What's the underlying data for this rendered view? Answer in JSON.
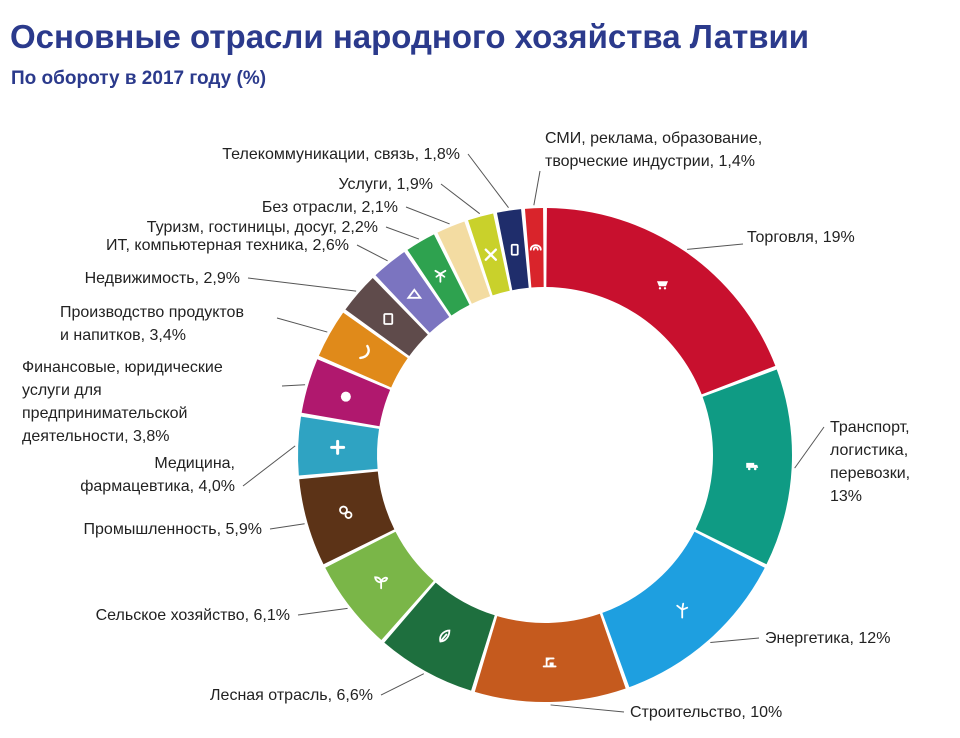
{
  "title": "Основные отрасли народного хозяйства Латвии",
  "subtitle": "По обороту в 2017 году (%)",
  "chart_data": {
    "type": "pie",
    "title": "Основные отрасли народного хозяйства Латвии",
    "subtitle": "По обороту в 2017 году (%)",
    "donut": true,
    "slices": [
      {
        "label_lines": [
          "Торговля, 19%"
        ],
        "category": "Торговля",
        "value": 19,
        "color": "#c8102e",
        "icon": "cart-icon"
      },
      {
        "label_lines": [
          "Транспорт,",
          "логистика,",
          "перевозки,",
          "13%"
        ],
        "category": "Транспорт, логистика, перевозки",
        "value": 13,
        "color": "#0f9b84",
        "icon": "truck-icon"
      },
      {
        "label_lines": [
          "Энергетика, 12%"
        ],
        "category": "Энергетика",
        "value": 12,
        "color": "#1e9fe0",
        "icon": "wind-turbine-icon"
      },
      {
        "label_lines": [
          "Строительство, 10%"
        ],
        "category": "Строительство",
        "value": 10,
        "color": "#c55a1e",
        "icon": "crane-icon"
      },
      {
        "label_lines": [
          "Лесная отрасль, 6,6%"
        ],
        "category": "Лесная отрасль",
        "value": 6.6,
        "color": "#1e6f3e",
        "icon": "leaf-icon"
      },
      {
        "label_lines": [
          "Сельское хозяйство, 6,1%"
        ],
        "category": "Сельское хозяйство",
        "value": 6.1,
        "color": "#7ab648",
        "icon": "sprout-icon"
      },
      {
        "label_lines": [
          "Промышленность, 5,9%"
        ],
        "category": "Промышленность",
        "value": 5.9,
        "color": "#5c3317",
        "icon": "gears-icon"
      },
      {
        "label_lines": [
          "Медицина,",
          "фармацевтика, 4,0%"
        ],
        "category": "Медицина, фармацевтика",
        "value": 4.0,
        "color": "#2fa3c2",
        "icon": "cross-icon"
      },
      {
        "label_lines": [
          "Финансовые, юридические",
          "услуги для",
          "предпринимательской",
          "деятельности, 3,8%"
        ],
        "category": "Финансовые, юридические услуги для предпринимательской деятельности",
        "value": 3.8,
        "color": "#b0186e",
        "icon": "coin-icon"
      },
      {
        "label_lines": [
          "Производство продуктов",
          "и напитков, 3,4%"
        ],
        "category": "Производство продуктов и напитков",
        "value": 3.4,
        "color": "#e08a1a",
        "icon": "croissant-icon"
      },
      {
        "label_lines": [
          "Недвижимость, 2,9%"
        ],
        "category": "Недвижимость",
        "value": 2.9,
        "color": "#5f4b4b",
        "icon": "building-icon"
      },
      {
        "label_lines": [
          "ИТ, компьютерная техника, 2,6%"
        ],
        "category": "ИТ, компьютерная техника",
        "value": 2.6,
        "color": "#7b74c0",
        "icon": "network-icon"
      },
      {
        "label_lines": [
          "Туризм, гостиницы, досуг, 2,2%"
        ],
        "category": "Туризм, гостиницы, досуг",
        "value": 2.2,
        "color": "#2ea24f",
        "icon": "palm-icon"
      },
      {
        "label_lines": [
          "Без отрасли, 2,1%"
        ],
        "category": "Без отрасли",
        "value": 2.1,
        "color": "#f3dca2",
        "icon": ""
      },
      {
        "label_lines": [
          "Услуги, 1,9%"
        ],
        "category": "Услуги",
        "value": 1.9,
        "color": "#c9d12b",
        "icon": "tools-icon"
      },
      {
        "label_lines": [
          "Телекоммуникации, связь, 1,8%"
        ],
        "category": "Телекоммуникации, связь",
        "value": 1.8,
        "color": "#1f2d6b",
        "icon": "phone-icon"
      },
      {
        "label_lines": [
          "СМИ, реклама, образование,",
          "творческие индустрии, 1,4%"
        ],
        "category": "СМИ, реклама, образование, творческие индустрии",
        "value": 1.4,
        "color": "#d9242b",
        "icon": "media-icon"
      }
    ]
  }
}
